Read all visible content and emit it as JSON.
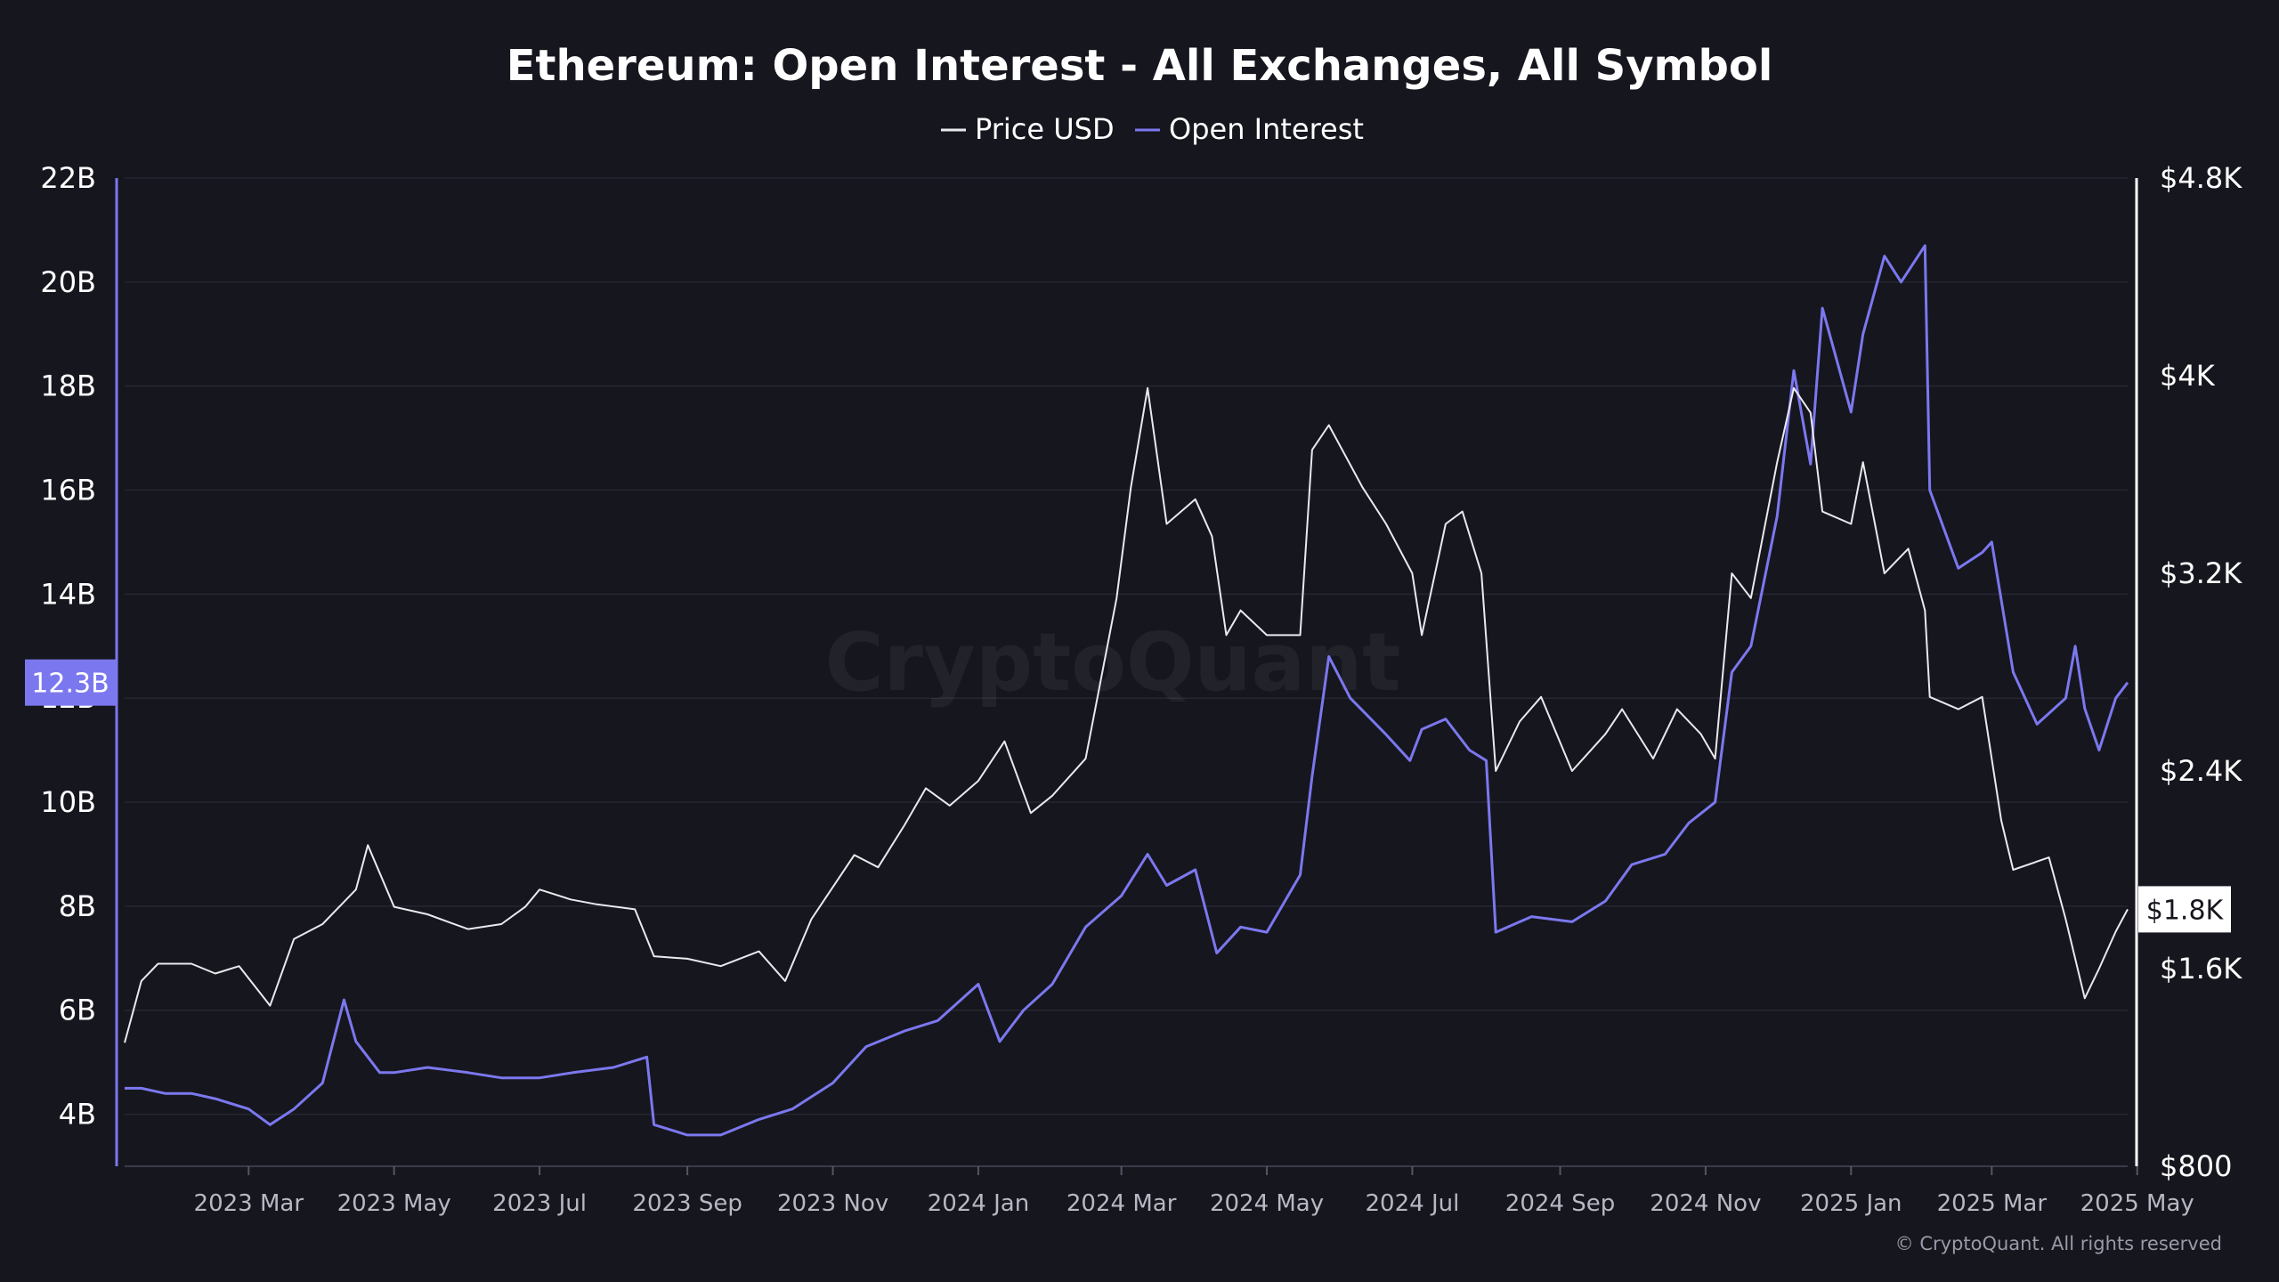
{
  "colors": {
    "background": "#16161e",
    "grid": "#272733",
    "price": "#e9e9ee",
    "open_interest": "#7b78ef",
    "left_axis": "#7b78ef",
    "right_axis": "#ffffff"
  },
  "watermark": "CryptoQuant",
  "copyright": "© CryptoQuant. All rights reserved",
  "chart_data": {
    "type": "line",
    "title": "Ethereum: Open Interest - All Exchanges, All Symbol",
    "legend": [
      "Price USD",
      "Open Interest"
    ],
    "legend_position": "top-center",
    "grid": true,
    "x_range": [
      "2023-01-08",
      "2025-04-27"
    ],
    "x_ticks": [
      "2023 Mar",
      "2023 May",
      "2023 Jul",
      "2023 Sep",
      "2023 Nov",
      "2024 Jan",
      "2024 Mar",
      "2024 May",
      "2024 Jul",
      "2024 Sep",
      "2024 Nov",
      "2025 Jan",
      "2025 Mar",
      "2025 May"
    ],
    "x_tick_dates": [
      "2023-03-01",
      "2023-05-01",
      "2023-07-01",
      "2023-09-01",
      "2023-11-01",
      "2024-01-01",
      "2024-03-01",
      "2024-05-01",
      "2024-07-01",
      "2024-09-01",
      "2024-11-01",
      "2025-01-01",
      "2025-03-01",
      "2025-05-01"
    ],
    "left_axis": {
      "ylim": [
        3,
        22
      ],
      "ticks": [
        4,
        6,
        8,
        10,
        12,
        14,
        16,
        18,
        20,
        22
      ],
      "tick_labels": [
        "4B",
        "6B",
        "8B",
        "10B",
        "12B",
        "14B",
        "16B",
        "18B",
        "20B",
        "22B"
      ],
      "current_label": "12.3B",
      "current_value": 12.3
    },
    "right_axis": {
      "ylim": [
        800,
        4800
      ],
      "ticks": [
        800,
        1600,
        2400,
        3200,
        4000,
        4800
      ],
      "tick_labels": [
        "$800",
        "$1.6K",
        "$2.4K",
        "$3.2K",
        "$4K",
        "$4.8K"
      ],
      "current_label": "$1.8K",
      "current_value": 1840
    },
    "series": [
      {
        "name": "Price USD",
        "axis": "right",
        "x": [
          "2023-01-08",
          "2023-01-15",
          "2023-01-22",
          "2023-02-05",
          "2023-02-15",
          "2023-02-25",
          "2023-03-10",
          "2023-03-20",
          "2023-04-01",
          "2023-04-15",
          "2023-04-20",
          "2023-05-01",
          "2023-05-15",
          "2023-06-01",
          "2023-06-15",
          "2023-06-25",
          "2023-07-01",
          "2023-07-14",
          "2023-07-25",
          "2023-08-10",
          "2023-08-18",
          "2023-09-01",
          "2023-09-15",
          "2023-10-01",
          "2023-10-12",
          "2023-10-23",
          "2023-11-10",
          "2023-11-20",
          "2023-12-01",
          "2023-12-10",
          "2023-12-20",
          "2024-01-01",
          "2024-01-12",
          "2024-01-23",
          "2024-02-01",
          "2024-02-15",
          "2024-02-28",
          "2024-03-05",
          "2024-03-12",
          "2024-03-20",
          "2024-04-01",
          "2024-04-08",
          "2024-04-14",
          "2024-04-20",
          "2024-05-01",
          "2024-05-15",
          "2024-05-20",
          "2024-05-27",
          "2024-06-10",
          "2024-06-20",
          "2024-07-01",
          "2024-07-05",
          "2024-07-15",
          "2024-07-22",
          "2024-07-30",
          "2024-08-05",
          "2024-08-15",
          "2024-08-24",
          "2024-09-06",
          "2024-09-20",
          "2024-09-27",
          "2024-10-10",
          "2024-10-20",
          "2024-10-30",
          "2024-11-05",
          "2024-11-12",
          "2024-11-20",
          "2024-12-01",
          "2024-12-08",
          "2024-12-15",
          "2024-12-20",
          "2025-01-01",
          "2025-01-06",
          "2025-01-15",
          "2025-01-25",
          "2025-02-01",
          "2025-02-03",
          "2025-02-15",
          "2025-02-25",
          "2025-03-05",
          "2025-03-10",
          "2025-03-25",
          "2025-04-01",
          "2025-04-09",
          "2025-04-15",
          "2025-04-22",
          "2025-04-27"
        ],
        "y": [
          1300,
          1550,
          1620,
          1620,
          1580,
          1610,
          1450,
          1720,
          1780,
          1920,
          2100,
          1850,
          1820,
          1760,
          1780,
          1850,
          1920,
          1880,
          1860,
          1840,
          1650,
          1640,
          1610,
          1670,
          1550,
          1800,
          2060,
          2010,
          2180,
          2330,
          2260,
          2360,
          2520,
          2230,
          2300,
          2450,
          3100,
          3550,
          3950,
          3400,
          3500,
          3350,
          2950,
          3050,
          2950,
          2950,
          3700,
          3800,
          3550,
          3400,
          3200,
          2950,
          3400,
          3450,
          3200,
          2400,
          2600,
          2700,
          2400,
          2550,
          2650,
          2450,
          2650,
          2550,
          2450,
          3200,
          3100,
          3650,
          3950,
          3850,
          3450,
          3400,
          3650,
          3200,
          3300,
          3050,
          2700,
          2650,
          2700,
          2200,
          2000,
          2050,
          1800,
          1480,
          1600,
          1750,
          1840
        ]
      },
      {
        "name": "Open Interest",
        "axis": "left",
        "x": [
          "2023-01-08",
          "2023-01-15",
          "2023-01-25",
          "2023-02-05",
          "2023-02-15",
          "2023-03-01",
          "2023-03-10",
          "2023-03-20",
          "2023-04-01",
          "2023-04-10",
          "2023-04-15",
          "2023-04-25",
          "2023-05-01",
          "2023-05-15",
          "2023-06-01",
          "2023-06-15",
          "2023-07-01",
          "2023-07-15",
          "2023-08-01",
          "2023-08-15",
          "2023-08-18",
          "2023-09-01",
          "2023-09-15",
          "2023-10-01",
          "2023-10-15",
          "2023-11-01",
          "2023-11-15",
          "2023-12-01",
          "2023-12-15",
          "2024-01-01",
          "2024-01-10",
          "2024-01-20",
          "2024-02-01",
          "2024-02-15",
          "2024-03-01",
          "2024-03-12",
          "2024-03-20",
          "2024-04-01",
          "2024-04-10",
          "2024-04-20",
          "2024-05-01",
          "2024-05-15",
          "2024-05-20",
          "2024-05-27",
          "2024-06-05",
          "2024-06-20",
          "2024-06-30",
          "2024-07-05",
          "2024-07-15",
          "2024-07-25",
          "2024-08-01",
          "2024-08-05",
          "2024-08-20",
          "2024-09-06",
          "2024-09-20",
          "2024-10-01",
          "2024-10-15",
          "2024-10-25",
          "2024-11-05",
          "2024-11-12",
          "2024-11-20",
          "2024-12-01",
          "2024-12-08",
          "2024-12-15",
          "2024-12-20",
          "2025-01-01",
          "2025-01-06",
          "2025-01-15",
          "2025-01-22",
          "2025-02-01",
          "2025-02-03",
          "2025-02-15",
          "2025-02-25",
          "2025-03-01",
          "2025-03-10",
          "2025-03-20",
          "2025-04-01",
          "2025-04-05",
          "2025-04-09",
          "2025-04-15",
          "2025-04-22",
          "2025-04-27"
        ],
        "y": [
          4.5,
          4.5,
          4.4,
          4.4,
          4.3,
          4.1,
          3.8,
          4.1,
          4.6,
          6.2,
          5.4,
          4.8,
          4.8,
          4.9,
          4.8,
          4.7,
          4.7,
          4.8,
          4.9,
          5.1,
          3.8,
          3.6,
          3.6,
          3.9,
          4.1,
          4.6,
          5.3,
          5.6,
          5.8,
          6.5,
          5.4,
          6.0,
          6.5,
          7.6,
          8.2,
          9.0,
          8.4,
          8.7,
          7.1,
          7.6,
          7.5,
          8.6,
          10.5,
          12.8,
          12.0,
          11.3,
          10.8,
          11.4,
          11.6,
          11.0,
          10.8,
          7.5,
          7.8,
          7.7,
          8.1,
          8.8,
          9.0,
          9.6,
          10.0,
          12.5,
          13.0,
          15.5,
          18.3,
          16.5,
          19.5,
          17.5,
          19.0,
          20.5,
          20.0,
          20.7,
          16.0,
          14.5,
          14.8,
          15.0,
          12.5,
          11.5,
          12.0,
          13.0,
          11.8,
          11.0,
          12.0,
          12.3
        ]
      }
    ]
  }
}
